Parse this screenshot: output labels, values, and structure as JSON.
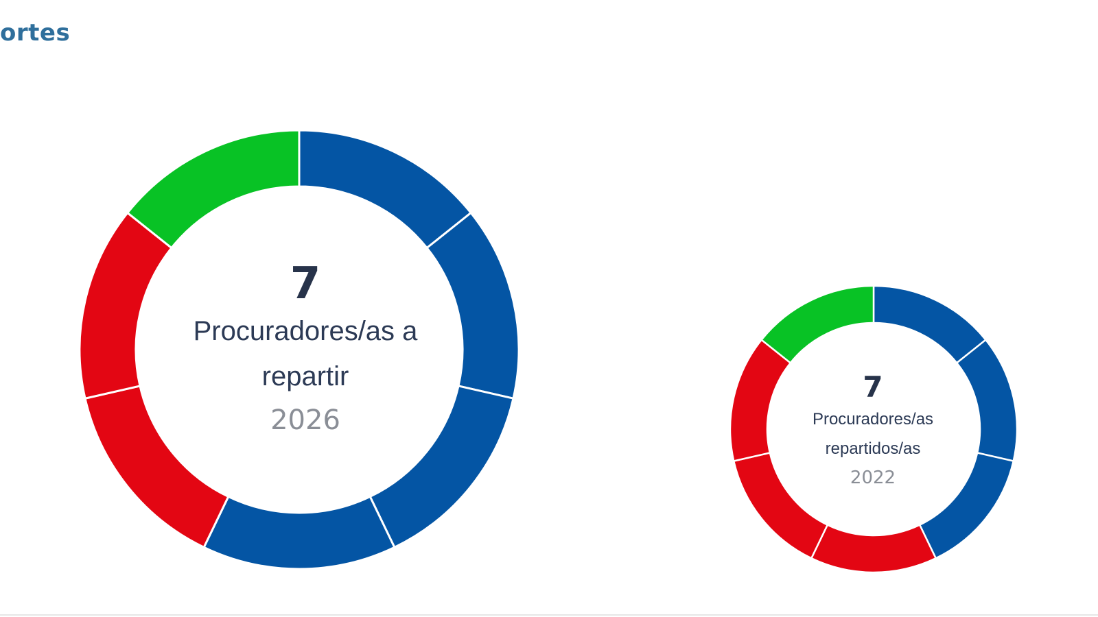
{
  "section": {
    "title": "ortes"
  },
  "colors": {
    "blue": "#0455a4",
    "red": "#e30613",
    "green": "#08c225",
    "separator": "#ffffff"
  },
  "chart_data": [
    {
      "type": "pie",
      "donut": true,
      "title": "",
      "center_value": "7",
      "center_caption": "Procuradores/as a repartir",
      "center_year": "2026",
      "slices": [
        {
          "value": 1,
          "color": "blue"
        },
        {
          "value": 1,
          "color": "blue"
        },
        {
          "value": 1,
          "color": "blue"
        },
        {
          "value": 1,
          "color": "blue"
        },
        {
          "value": 1,
          "color": "red"
        },
        {
          "value": 1,
          "color": "red"
        },
        {
          "value": 1,
          "color": "green"
        }
      ]
    },
    {
      "type": "pie",
      "donut": true,
      "title": "",
      "center_value": "7",
      "center_caption": "Procuradores/as repartidos/as",
      "center_year": "2022",
      "slices": [
        {
          "value": 1,
          "color": "blue"
        },
        {
          "value": 1,
          "color": "blue"
        },
        {
          "value": 1,
          "color": "blue"
        },
        {
          "value": 1,
          "color": "red"
        },
        {
          "value": 1,
          "color": "red"
        },
        {
          "value": 1,
          "color": "red"
        },
        {
          "value": 1,
          "color": "green"
        }
      ]
    }
  ]
}
